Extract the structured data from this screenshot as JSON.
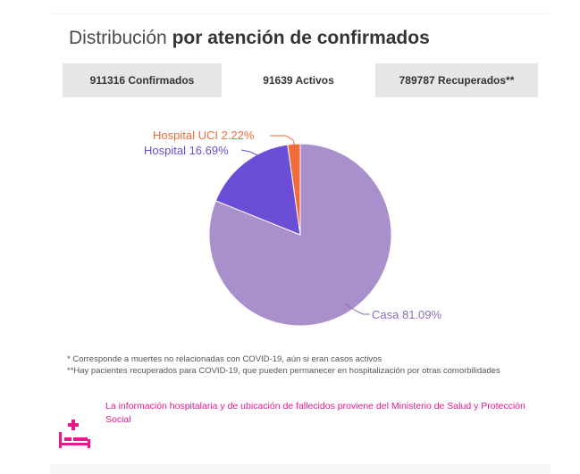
{
  "title": {
    "prefix": "Distribución",
    "bold": "por atención de confirmados"
  },
  "tabs": [
    {
      "label": "911316 Confirmados"
    },
    {
      "label": "91639 Activos"
    },
    {
      "label": "789787 Recuperados**"
    }
  ],
  "chart_data": {
    "type": "pie",
    "slices": [
      {
        "label": "Casa 81.09%",
        "value": 81.09,
        "color": "#a98fcb"
      },
      {
        "label": "Hospital 16.69%",
        "value": 16.69,
        "color": "#6a4fd6"
      },
      {
        "label": "Hospital UCI 2.22%",
        "value": 2.22,
        "color": "#f26b3a"
      }
    ],
    "label_colors": {
      "casa": "#8a6fb9",
      "hospital": "#6a4fd6",
      "uci": "#f26b3a"
    }
  },
  "notes": {
    "note1": "* Corresponde a muertes no relacionadas con COVID-19, aún si eran casos activos",
    "note2": "**Hay pacientes recuperados para COVID-19, que pueden permanecer en hospitalización por otras comorbilidades"
  },
  "info": "La información hospitalaria y de ubicación de fallecidos proviene del Ministerio de Salud y Protección Social",
  "icons": {
    "bed": "hospital-bed-icon",
    "accent": "#e6198a"
  }
}
